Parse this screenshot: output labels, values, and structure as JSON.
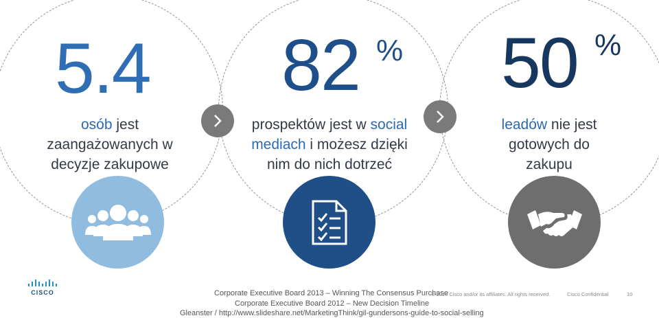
{
  "stats": [
    {
      "number": "5.4",
      "percent": "",
      "highlight": "osób",
      "text_rest": " jest",
      "line2": "zaangażowanych w",
      "line3": "decyzje zakupowe",
      "icon": "group-people-icon",
      "number_color": "#2f6db5",
      "icon_bg": "#8fbcdf"
    },
    {
      "number": "82",
      "percent": "%",
      "line1a": "prospektów jest w ",
      "line1b": "social",
      "line2a": "mediach",
      "line2b": " i możesz dzięki",
      "line3": "nim do nich dotrzeć",
      "icon": "checklist-document-icon",
      "number_color": "#1e4f8a",
      "icon_bg": "#1f4f86"
    },
    {
      "number": "50",
      "percent": "%",
      "highlight": "leadów",
      "text_rest": " nie jest",
      "line2": "gotowych do",
      "line3": "zakupu",
      "icon": "handshake-icon",
      "number_color": "#16375e",
      "icon_bg": "#6e6e6e"
    }
  ],
  "arrows": [
    "chevron-right-icon",
    "chevron-right-icon"
  ],
  "footer": {
    "logo_text": "CISCO",
    "source1": "Corporate Executive Board 2013 – Winning The Consensus Purchase",
    "source2": "Corporate Executive Board 2012 – New Decision Timeline",
    "source3": "Gleanster / http://www.slideshare.net/MarketingThink/gil-gundersons-guide-to-social-selling",
    "copyright": "© 2014  Cisco and/or its affiliates. All rights reserved.",
    "confidential": "Cisco Confidential",
    "page_number": "10"
  },
  "colors": {
    "highlight": "#2a6ab0",
    "body_text": "#333a44",
    "chevron": "#7a7a7a"
  }
}
